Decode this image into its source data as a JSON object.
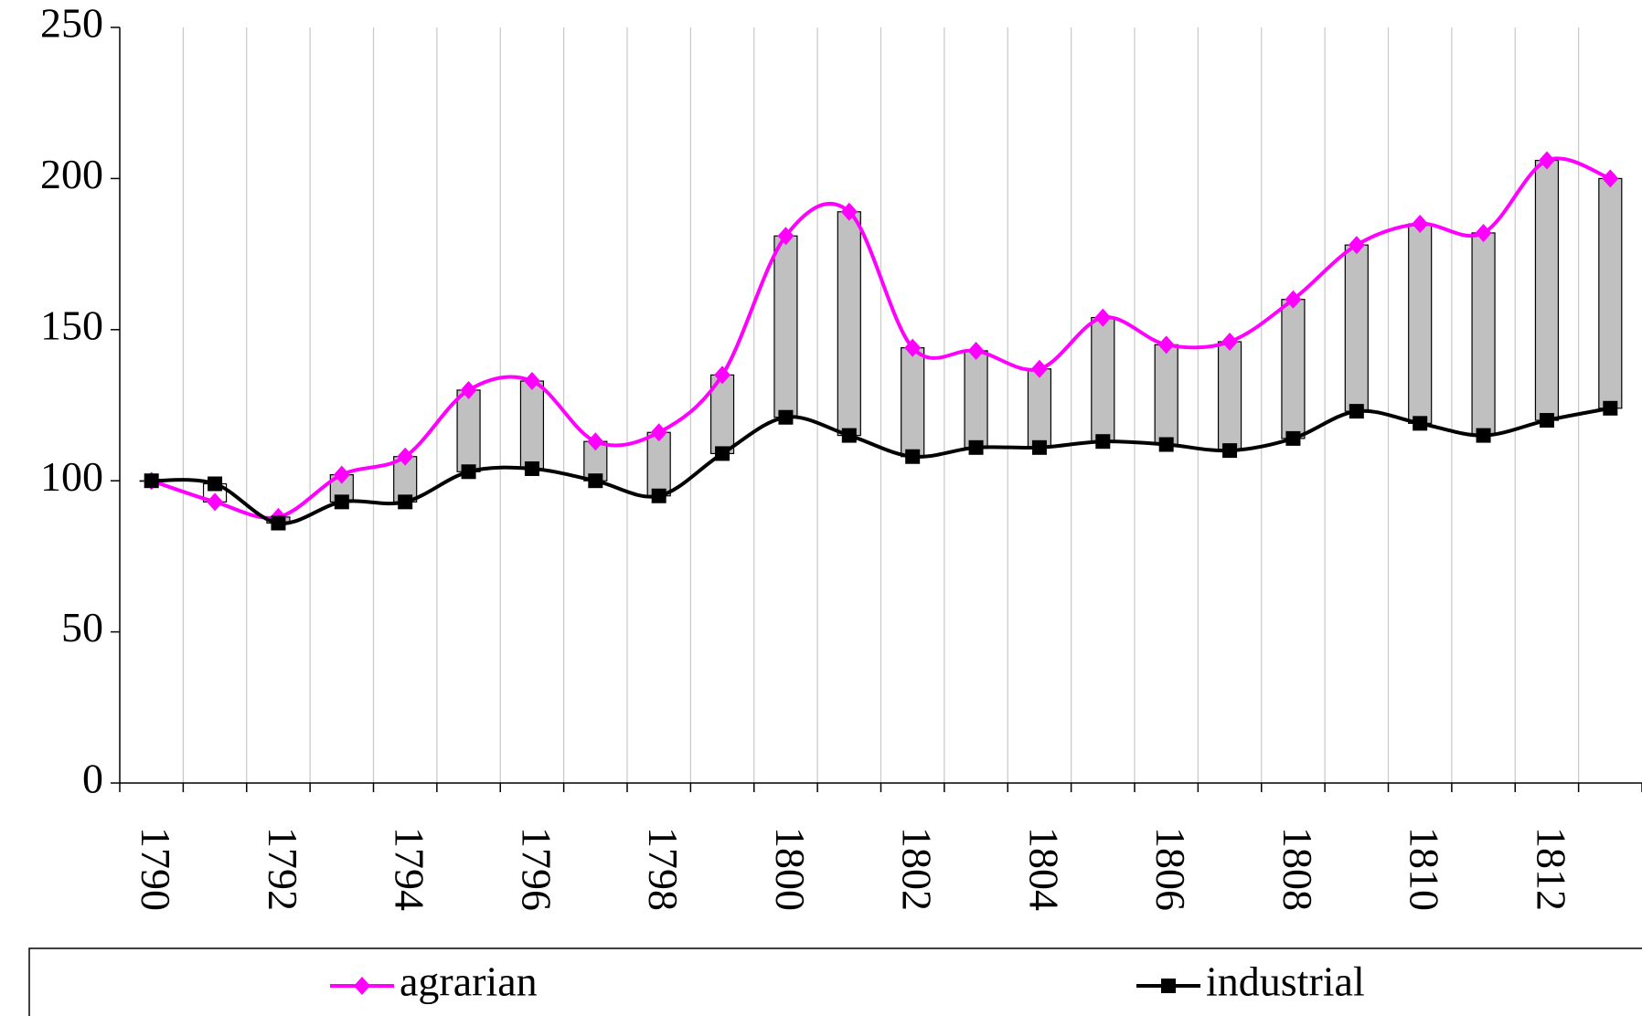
{
  "chart_data": {
    "type": "line",
    "categories": [
      "1790",
      null,
      "1792",
      null,
      "1794",
      null,
      "1796",
      null,
      "1798",
      null,
      "1800",
      null,
      "1802",
      null,
      "1804",
      null,
      "1806",
      null,
      "1808",
      null,
      "1810",
      null,
      "1812",
      null
    ],
    "series": [
      {
        "name": "agrarian",
        "color": "#ff00ff",
        "marker": "diamond",
        "values": [
          100,
          93,
          88,
          102,
          108,
          130,
          133,
          113,
          116,
          135,
          181,
          189,
          144,
          143,
          137,
          154,
          145,
          146,
          160,
          178,
          185,
          182,
          206,
          200
        ]
      },
      {
        "name": "industrial",
        "color": "#000000",
        "marker": "square",
        "values": [
          100,
          99,
          86,
          93,
          93,
          103,
          104,
          100,
          95,
          109,
          121,
          115,
          108,
          111,
          111,
          113,
          112,
          110,
          114,
          123,
          119,
          115,
          120,
          124
        ]
      }
    ],
    "high_low_bars": true,
    "bar_color": "#c0c0c0",
    "ylim": [
      0,
      250
    ],
    "yticks": [
      0,
      50,
      100,
      150,
      200,
      250
    ],
    "grid": "x",
    "smooth": true,
    "legend": "bottom"
  }
}
